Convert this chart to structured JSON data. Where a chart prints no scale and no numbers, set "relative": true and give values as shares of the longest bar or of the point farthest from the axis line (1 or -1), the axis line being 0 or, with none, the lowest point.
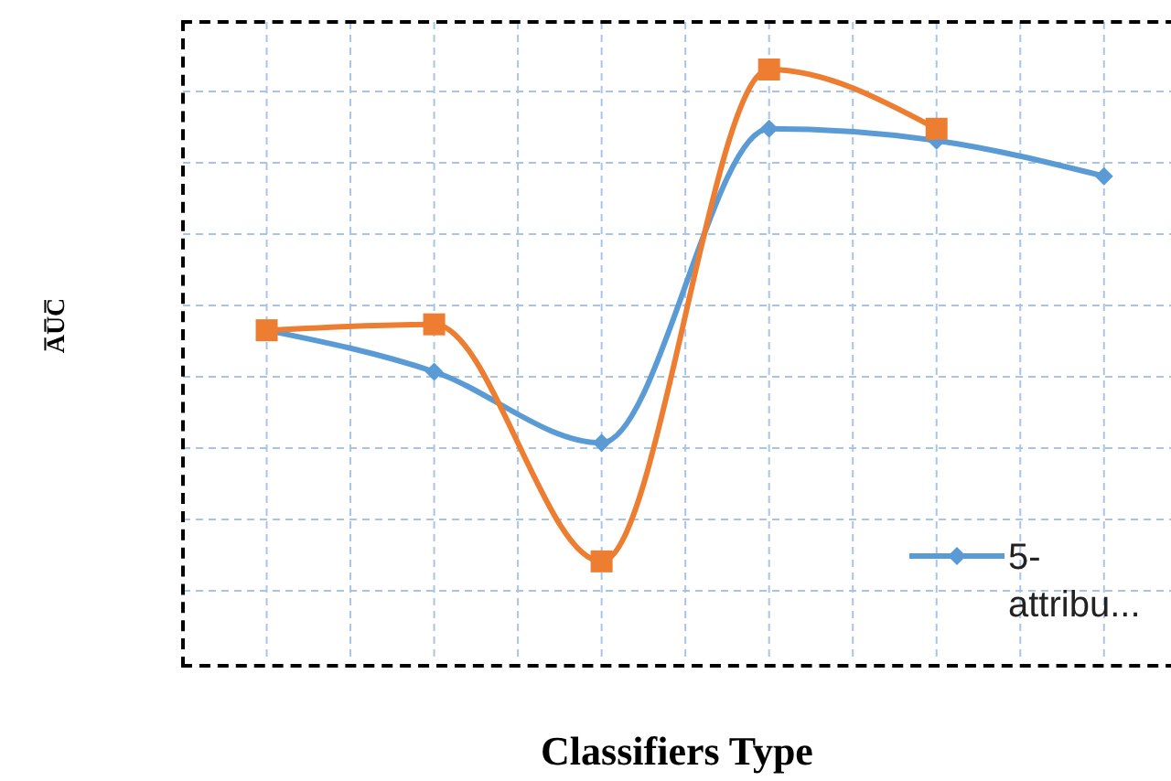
{
  "chart_data": {
    "type": "line",
    "relative": true,
    "xlabel": "Classifiers Type",
    "ylabel": "A̅U̅C̅",
    "categories": [
      null,
      null,
      null,
      null,
      null,
      null
    ],
    "series": [
      {
        "name": "5-attribu...",
        "color": "#5b9bd5",
        "marker": "diamond",
        "values": [
          0.56,
          0.49,
          0.37,
          0.9,
          0.88,
          0.82
        ]
      },
      {
        "color": "#ed7d31",
        "marker": "square",
        "values": [
          0.56,
          0.57,
          0.17,
          1.0,
          0.9,
          null
        ]
      }
    ],
    "grid": true,
    "legend": "bottom right",
    "line_style": "solid"
  }
}
